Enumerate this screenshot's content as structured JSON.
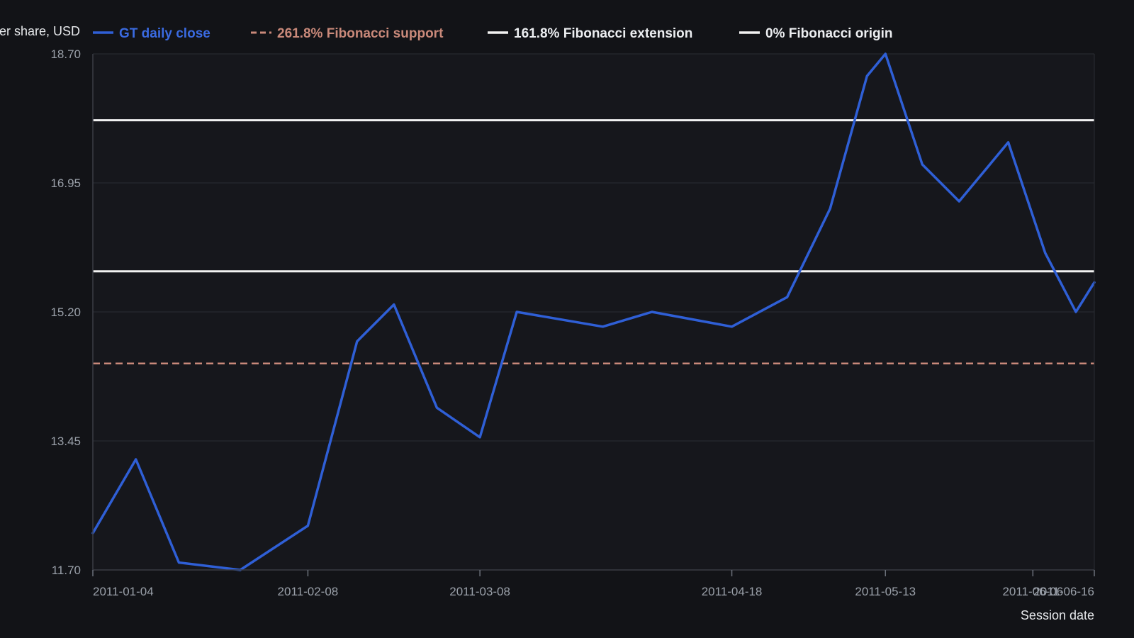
{
  "chart_data": {
    "type": "line",
    "ylabel": "Price per share, USD",
    "xlabel": "Session date",
    "ylim": [
      11.7,
      18.7
    ],
    "y_ticks": [
      "11.70",
      "13.45",
      "15.20",
      "16.95",
      "18.70"
    ],
    "x_ticks": [
      "2011-01-04",
      "2011-02-08",
      "2011-03-08",
      "2011-04-18",
      "2011-05-13",
      "2011-06-06",
      "2011-06-16"
    ],
    "grid": "horizontal",
    "legend_position": "top",
    "colors": {
      "background": "#121317",
      "plot_background": "#16171c",
      "close": "#2f5fd6",
      "support": "#c9897a",
      "extension": "#f2f2f2",
      "origin": "#f2f2f2"
    },
    "series": [
      {
        "name": "GT daily close",
        "style": "solid",
        "x": [
          "2011-01-04",
          "2011-01-11",
          "2011-01-18",
          "2011-01-28",
          "2011-02-08",
          "2011-02-16",
          "2011-02-22",
          "2011-03-01",
          "2011-03-08",
          "2011-03-14",
          "2011-03-28",
          "2011-04-05",
          "2011-04-18",
          "2011-04-27",
          "2011-05-04",
          "2011-05-10",
          "2011-05-13",
          "2011-05-19",
          "2011-05-25",
          "2011-06-02",
          "2011-06-08",
          "2011-06-13",
          "2011-06-16"
        ],
        "values": [
          12.2,
          13.2,
          11.8,
          11.7,
          12.3,
          14.8,
          15.3,
          13.9,
          13.5,
          15.2,
          15.0,
          15.2,
          15.0,
          15.4,
          16.6,
          18.4,
          18.7,
          17.2,
          16.7,
          17.5,
          16.0,
          15.2,
          15.6
        ]
      },
      {
        "name": "261.8% Fibonacci support",
        "style": "dashed",
        "value": 14.5
      },
      {
        "name": "161.8% Fibonacci extension",
        "style": "solid",
        "value": 17.8
      },
      {
        "name": "0% Fibonacci origin",
        "style": "solid",
        "value": 15.75
      }
    ]
  }
}
